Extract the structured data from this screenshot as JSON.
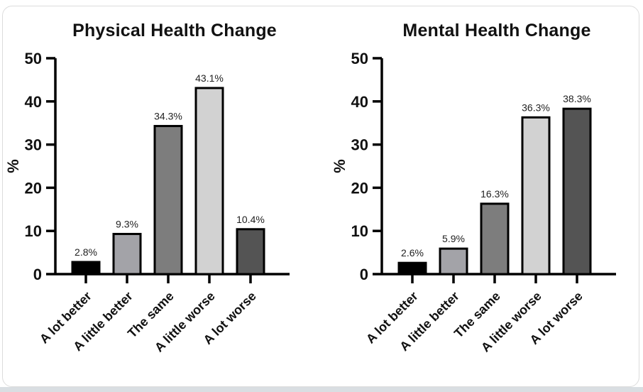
{
  "figure": {
    "card_background": "#ffffff",
    "card_border_color": "#dcdcdc",
    "page_background": "#ffffff",
    "bottom_strip_color": "#d9dee2",
    "axis_color": "#000000",
    "bar_outline_color": "#000000"
  },
  "chart_data": [
    {
      "type": "bar",
      "title": "Physical Health Change",
      "xlabel": "",
      "ylabel": "%",
      "ylim": [
        0,
        50
      ],
      "yticks": [
        0,
        10,
        20,
        30,
        40,
        50
      ],
      "grid": false,
      "legend": "none",
      "categories": [
        "A lot better",
        "A little better",
        "The same",
        "A little worse",
        "A lot worse"
      ],
      "values": [
        2.8,
        9.3,
        34.3,
        43.1,
        10.4
      ],
      "value_labels": [
        "2.8%",
        "9.3%",
        "34.3%",
        "43.1%",
        "10.4%"
      ],
      "bar_fill_colors": [
        "#000000",
        "#a3a3a8",
        "#7d7d7d",
        "#d2d2d2",
        "#545454"
      ]
    },
    {
      "type": "bar",
      "title": "Mental Health Change",
      "xlabel": "",
      "ylabel": "%",
      "ylim": [
        0,
        50
      ],
      "yticks": [
        0,
        10,
        20,
        30,
        40,
        50
      ],
      "grid": false,
      "legend": "none",
      "categories": [
        "A lot better",
        "A little better",
        "The same",
        "A little worse",
        "A lot worse"
      ],
      "values": [
        2.6,
        5.9,
        16.3,
        36.3,
        38.3
      ],
      "value_labels": [
        "2.6%",
        "5.9%",
        "16.3%",
        "36.3%",
        "38.3%"
      ],
      "bar_fill_colors": [
        "#000000",
        "#a3a3a8",
        "#7d7d7d",
        "#d2d2d2",
        "#545454"
      ]
    }
  ]
}
